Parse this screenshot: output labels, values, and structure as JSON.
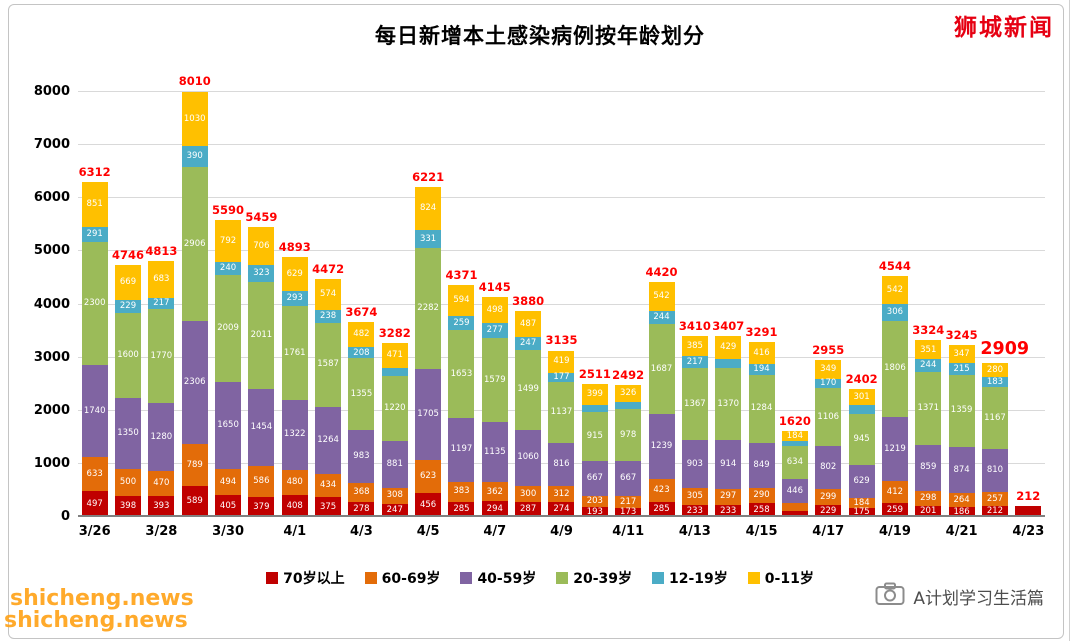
{
  "brand": {
    "text": "狮城新闻",
    "color": "#e60012"
  },
  "footer": {
    "label": "A计划学习生活篇"
  },
  "watermark": {
    "text": "shicheng.news",
    "color": "#ffa31a"
  },
  "chart_data": {
    "type": "bar",
    "stacked": true,
    "title": "每日新增本土感染病例按年龄划分",
    "ylabel": "",
    "xlabel": "",
    "ylim": [
      0,
      8000
    ],
    "yticks": [
      0,
      1000,
      2000,
      3000,
      4000,
      5000,
      6000,
      7000,
      8000
    ],
    "grid": true,
    "legend_position": "bottom",
    "emphasize_index": 27,
    "categories": [
      "3/26",
      "3/27",
      "3/28",
      "3/29",
      "3/30",
      "3/31",
      "4/1",
      "4/2",
      "4/3",
      "4/4",
      "4/5",
      "4/6",
      "4/7",
      "4/8",
      "4/9",
      "4/10",
      "4/11",
      "4/12",
      "4/13",
      "4/14",
      "4/15",
      "4/16",
      "4/17",
      "4/18",
      "4/19",
      "4/20",
      "4/21",
      "4/22",
      "4/23"
    ],
    "xtick_labels": [
      "3/26",
      "3/28",
      "3/30",
      "4/1",
      "4/3",
      "4/5",
      "4/7",
      "4/9",
      "4/11",
      "4/13",
      "4/15",
      "4/17",
      "4/19",
      "4/21",
      "4/23"
    ],
    "totals": [
      6312,
      4746,
      4813,
      8010,
      5590,
      5459,
      4893,
      4472,
      3674,
      3282,
      6221,
      4371,
      4145,
      3880,
      3135,
      2511,
      2492,
      4420,
      3410,
      3407,
      3291,
      1620,
      2955,
      2402,
      4544,
      3324,
      3245,
      2909,
      212
    ],
    "series": [
      {
        "name": "70岁以上",
        "color": "#c00000",
        "values": [
          497,
          398,
          393,
          589,
          405,
          379,
          408,
          375,
          278,
          247,
          456,
          285,
          294,
          287,
          274,
          193,
          173,
          285,
          233,
          233,
          258,
          121,
          229,
          175,
          259,
          201,
          186,
          212,
          212
        ]
      },
      {
        "name": "60-69岁",
        "color": "#e36c09",
        "values": [
          633,
          500,
          470,
          789,
          494,
          586,
          480,
          434,
          368,
          308,
          623,
          383,
          362,
          300,
          312,
          203,
          217,
          423,
          305,
          297,
          290,
          143,
          299,
          184,
          412,
          298,
          264,
          257,
          0
        ]
      },
      {
        "name": "40-59岁",
        "color": "#8064a2",
        "values": [
          1740,
          1350,
          1280,
          2306,
          1650,
          1454,
          1322,
          1264,
          983,
          881,
          1705,
          1197,
          1135,
          1060,
          816,
          667,
          667,
          1239,
          903,
          914,
          849,
          446,
          802,
          629,
          1219,
          859,
          874,
          810,
          0
        ]
      },
      {
        "name": "20-39岁",
        "color": "#9bbb59",
        "values": [
          2300,
          1600,
          1770,
          2906,
          2009,
          2011,
          1761,
          1587,
          1355,
          1220,
          2282,
          1653,
          1579,
          1499,
          1137,
          915,
          978,
          1687,
          1367,
          1370,
          1284,
          634,
          1106,
          945,
          1806,
          1371,
          1359,
          1167,
          0
        ]
      },
      {
        "name": "12-19岁",
        "color": "#4bacc6",
        "values": [
          291,
          229,
          217,
          390,
          240,
          323,
          293,
          238,
          208,
          155,
          331,
          259,
          277,
          247,
          177,
          134,
          131,
          244,
          217,
          164,
          194,
          92,
          170,
          168,
          306,
          244,
          215,
          183,
          0
        ]
      },
      {
        "name": "0-11岁",
        "color": "#ffc000",
        "values": [
          851,
          669,
          683,
          1030,
          792,
          706,
          629,
          574,
          482,
          471,
          824,
          594,
          498,
          487,
          419,
          399,
          326,
          542,
          385,
          429,
          416,
          184,
          349,
          301,
          542,
          351,
          347,
          280,
          0
        ]
      }
    ]
  }
}
